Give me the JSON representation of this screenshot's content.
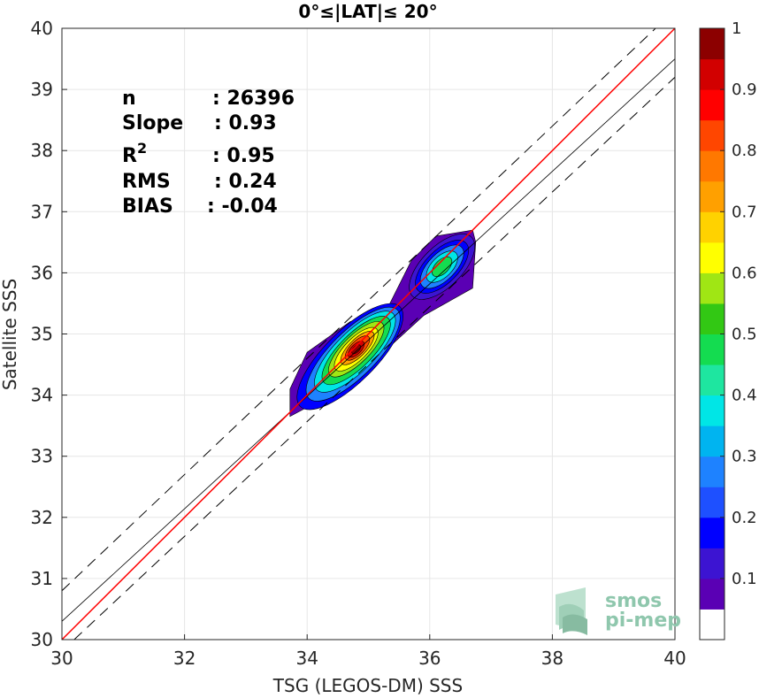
{
  "chart_data": {
    "type": "contour-density-scatter",
    "title": "0°≤|LAT|≤ 20°",
    "xlabel": "TSG (LEGOS-DM) SSS",
    "ylabel": "Satellite SSS",
    "xlim": [
      30,
      40
    ],
    "ylim": [
      30,
      40
    ],
    "xticks": [
      "30",
      "32",
      "34",
      "36",
      "38",
      "40"
    ],
    "yticks": [
      "30",
      "31",
      "32",
      "33",
      "34",
      "35",
      "36",
      "37",
      "38",
      "39",
      "40"
    ],
    "grid": true,
    "stats": [
      {
        "label": "n",
        "value": ": 26396"
      },
      {
        "label": "Slope",
        "value": ": 0.93"
      },
      {
        "label": "R",
        "sup": "2",
        "value": ": 0.95"
      },
      {
        "label": "RMS",
        "value": ": 0.24"
      },
      {
        "label": "BIAS",
        "value": ": -0.04"
      }
    ],
    "reference_lines": {
      "identity": {
        "color": "#ff0000",
        "from": [
          30,
          30
        ],
        "to": [
          40,
          40
        ]
      },
      "fit": {
        "color": "#000000",
        "from": [
          30,
          30.3
        ],
        "to": [
          40,
          39.5
        ]
      },
      "bounds_dashed": [
        {
          "from": [
            30,
            30.8
          ],
          "to": [
            40,
            40.3
          ]
        },
        {
          "from": [
            30.2,
            30
          ],
          "to": [
            40,
            39.2
          ]
        }
      ]
    },
    "density_centers": [
      {
        "x": 34.8,
        "y": 34.75,
        "peak": 1.0
      },
      {
        "x": 36.2,
        "y": 36.1,
        "peak": 0.45
      }
    ],
    "colorbar": {
      "range": [
        0,
        1
      ],
      "ticks": [
        "0.1",
        "0.2",
        "0.3",
        "0.4",
        "0.5",
        "0.6",
        "0.7",
        "0.8",
        "0.9",
        "1"
      ],
      "colors": [
        "#ffffff",
        "#5a00b4",
        "#3c14d2",
        "#0000ff",
        "#1e50ff",
        "#1e82ff",
        "#00b4f0",
        "#00e6e6",
        "#1ee6a0",
        "#14dc50",
        "#32c814",
        "#a0e614",
        "#ffff00",
        "#ffd200",
        "#ffa000",
        "#ff7800",
        "#ff4600",
        "#ff0000",
        "#d20000",
        "#8c0000"
      ]
    }
  },
  "logo": {
    "line1": "smos",
    "line2": "pi-mep"
  }
}
